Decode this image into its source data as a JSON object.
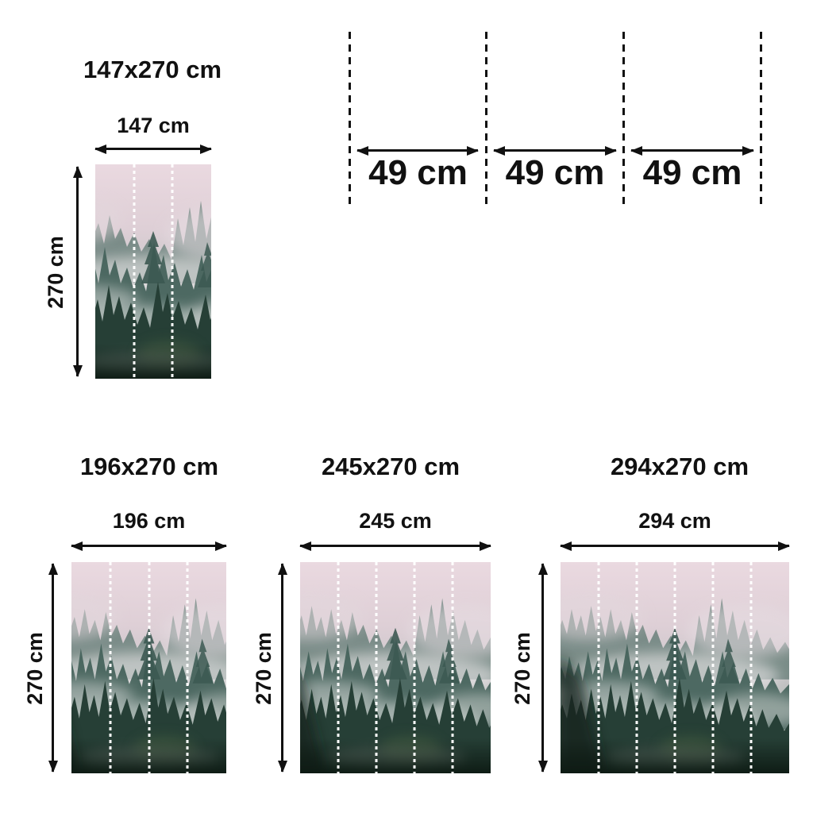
{
  "page": {
    "background": "#ffffff",
    "text_color": "#111111"
  },
  "roll_diagram": {
    "description": "roll-width-diagram",
    "segments": [
      {
        "label": "49 cm"
      },
      {
        "label": "49 cm"
      },
      {
        "label": "49 cm"
      }
    ]
  },
  "murals": [
    {
      "title": "147x270 cm",
      "width_label": "147 cm",
      "height_label": "270 cm",
      "panels": 3
    },
    {
      "title": "196x270 cm",
      "width_label": "196 cm",
      "height_label": "270 cm",
      "panels": 4
    },
    {
      "title": "245x270 cm",
      "width_label": "245 cm",
      "height_label": "270 cm",
      "panels": 5
    },
    {
      "title": "294x270 cm",
      "width_label": "294 cm",
      "height_label": "270 cm",
      "panels": 6
    }
  ],
  "colors": {
    "dimension_line": "#111111",
    "cut_line_white": "#ffffff",
    "sky_pink": "#ead9e0",
    "fog_grey": "#d9dedd",
    "tree_far": "#70857f",
    "tree_mid": "#46635c",
    "tree_near": "#263f36",
    "tree_dark_bottom": "#16281f"
  }
}
